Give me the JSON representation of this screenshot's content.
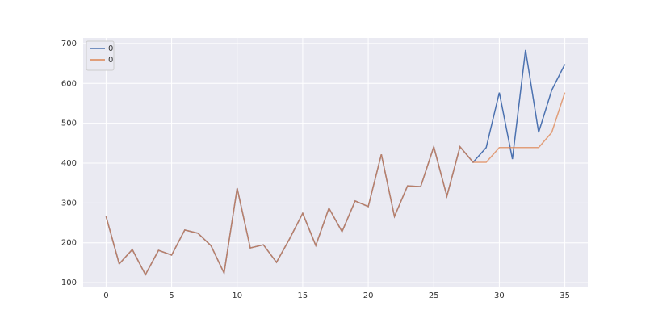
{
  "chart_data": {
    "type": "line",
    "x": [
      0,
      1,
      2,
      3,
      4,
      5,
      6,
      7,
      8,
      9,
      10,
      11,
      12,
      13,
      14,
      15,
      16,
      17,
      18,
      19,
      20,
      21,
      22,
      23,
      24,
      25,
      26,
      27,
      28,
      29,
      30,
      31,
      32,
      33,
      34,
      35
    ],
    "series": [
      {
        "name": "0",
        "color": "#4c72b0",
        "values": [
          266,
          147,
          183,
          120,
          181,
          169,
          232,
          224,
          193,
          124,
          337,
          187,
          195,
          151,
          210,
          274,
          193,
          287,
          228,
          305,
          291,
          422,
          266,
          343,
          341,
          441,
          317,
          441,
          402,
          439,
          577,
          410,
          684,
          477,
          583,
          648
        ]
      },
      {
        "name": "0",
        "color": "#dd8452",
        "values": [
          266,
          147,
          183,
          120,
          181,
          169,
          232,
          224,
          193,
          124,
          337,
          187,
          195,
          151,
          210,
          274,
          193,
          287,
          228,
          305,
          291,
          422,
          266,
          343,
          341,
          441,
          317,
          441,
          402,
          402,
          439,
          439,
          439,
          439,
          477,
          577
        ]
      }
    ],
    "xlim": [
      -1.75,
      36.75
    ],
    "xticks": [
      0,
      5,
      10,
      15,
      20,
      25,
      30,
      35
    ],
    "ylim": [
      90,
      714
    ],
    "yticks": [
      100,
      200,
      300,
      400,
      500,
      600,
      700
    ],
    "grid": true,
    "legend": "upper left"
  }
}
